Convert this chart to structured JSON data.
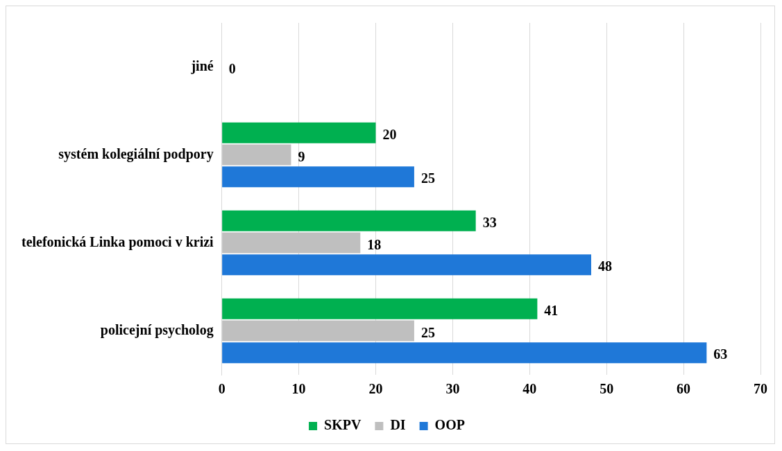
{
  "chart_data": {
    "type": "bar",
    "orientation": "horizontal",
    "categories": [
      "jiné",
      "systém kolegiální podpory",
      "telefonická Linka pomoci v krizi",
      "policejní psycholog"
    ],
    "series": [
      {
        "name": "SKPV",
        "color": "#00b050",
        "values": [
          0,
          20,
          33,
          41
        ],
        "value_labels": [
          null,
          "20",
          "33",
          "41"
        ]
      },
      {
        "name": "DI",
        "color": "#bfbfbf",
        "values": [
          0,
          9,
          18,
          25
        ],
        "value_labels": [
          "0",
          "9",
          "18",
          "25"
        ]
      },
      {
        "name": "OOP",
        "color": "#1f78d8",
        "values": [
          0,
          25,
          48,
          63
        ],
        "value_labels": [
          null,
          "25",
          "48",
          "63"
        ]
      }
    ],
    "xlim": [
      0,
      70
    ],
    "xticks": [
      0,
      10,
      20,
      30,
      40,
      50,
      60,
      70
    ],
    "grid": "x",
    "legend": "bottom"
  }
}
